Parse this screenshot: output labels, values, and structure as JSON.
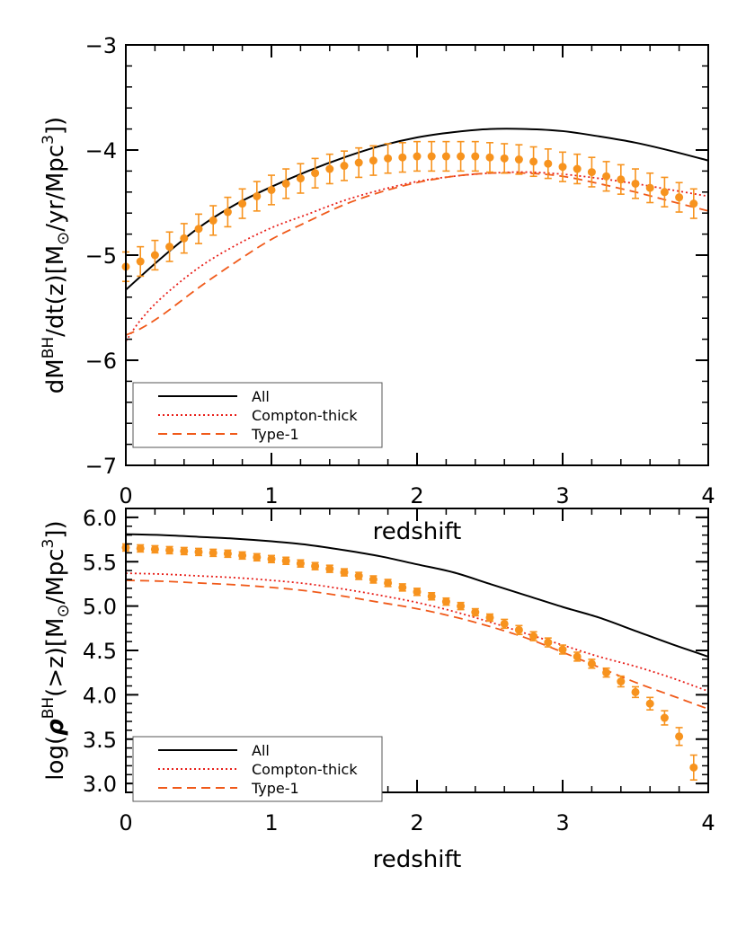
{
  "chart_data": [
    {
      "type": "line",
      "panel": "top",
      "xlabel": "redshift",
      "ylabel_parts": {
        "pre": "dM",
        "sup1": "BH",
        "mid": "/dt(z)[M",
        "sun": "⊙",
        "post": "/yr/Mpc",
        "sup2": "3",
        "end": "])"
      },
      "xlim": [
        0,
        4
      ],
      "ylim": [
        -7,
        -3
      ],
      "xticks": [
        0,
        1,
        2,
        3,
        4
      ],
      "xtick_labels": [
        "0",
        "1",
        "2",
        "3",
        "4"
      ],
      "yticks": [
        -7,
        -6,
        -5,
        -4,
        -3
      ],
      "ytick_labels": [
        "−7",
        "−6",
        "−5",
        "−4",
        "−3"
      ],
      "legend_position": "bottom-left",
      "series": [
        {
          "name": "All",
          "style": "solid",
          "color": "#000000",
          "x": [
            0,
            0.25,
            0.5,
            0.75,
            1.0,
            1.25,
            1.5,
            1.75,
            2.0,
            2.25,
            2.5,
            2.75,
            3.0,
            3.25,
            3.5,
            3.75,
            4.0
          ],
          "y": [
            -5.33,
            -5.02,
            -4.74,
            -4.52,
            -4.35,
            -4.2,
            -4.07,
            -3.96,
            -3.88,
            -3.83,
            -3.8,
            -3.8,
            -3.82,
            -3.87,
            -3.93,
            -4.01,
            -4.1
          ]
        },
        {
          "name": "Compton-thick",
          "style": "dotted",
          "color": "#e8201a",
          "x": [
            0,
            0.1,
            0.25,
            0.5,
            0.75,
            1.0,
            1.25,
            1.5,
            1.75,
            2.0,
            2.25,
            2.5,
            2.75,
            3.0,
            3.25,
            3.5,
            3.75,
            4.0
          ],
          "y": [
            -5.82,
            -5.62,
            -5.4,
            -5.12,
            -4.91,
            -4.74,
            -4.61,
            -4.48,
            -4.38,
            -4.3,
            -4.25,
            -4.22,
            -4.21,
            -4.23,
            -4.27,
            -4.32,
            -4.38,
            -4.44
          ]
        },
        {
          "name": "Type-1",
          "style": "dashed",
          "color": "#f05a1a",
          "x": [
            0,
            0.1,
            0.25,
            0.5,
            0.75,
            1.0,
            1.25,
            1.5,
            1.75,
            2.0,
            2.25,
            2.5,
            2.75,
            3.0,
            3.25,
            3.5,
            3.75,
            4.0
          ],
          "y": [
            -5.76,
            -5.7,
            -5.57,
            -5.31,
            -5.07,
            -4.85,
            -4.68,
            -4.52,
            -4.4,
            -4.31,
            -4.25,
            -4.22,
            -4.22,
            -4.25,
            -4.32,
            -4.4,
            -4.49,
            -4.58
          ]
        },
        {
          "name": "data",
          "style": "points",
          "color": "#f7931e",
          "x": [
            0.0,
            0.1,
            0.2,
            0.3,
            0.4,
            0.5,
            0.6,
            0.7,
            0.8,
            0.9,
            1.0,
            1.1,
            1.2,
            1.3,
            1.4,
            1.5,
            1.6,
            1.7,
            1.8,
            1.9,
            2.0,
            2.1,
            2.2,
            2.3,
            2.4,
            2.5,
            2.6,
            2.7,
            2.8,
            2.9,
            3.0,
            3.1,
            3.2,
            3.3,
            3.4,
            3.5,
            3.6,
            3.7,
            3.8,
            3.9
          ],
          "y": [
            -5.11,
            -5.06,
            -5.0,
            -4.92,
            -4.84,
            -4.75,
            -4.67,
            -4.59,
            -4.51,
            -4.44,
            -4.38,
            -4.32,
            -4.27,
            -4.22,
            -4.18,
            -4.15,
            -4.12,
            -4.1,
            -4.08,
            -4.07,
            -4.06,
            -4.06,
            -4.06,
            -4.06,
            -4.06,
            -4.07,
            -4.08,
            -4.09,
            -4.11,
            -4.13,
            -4.16,
            -4.18,
            -4.21,
            -4.25,
            -4.28,
            -4.32,
            -4.36,
            -4.4,
            -4.45,
            -4.51
          ],
          "err": 0.14
        }
      ]
    },
    {
      "type": "line",
      "panel": "bottom",
      "xlabel": "redshift",
      "xlabel_top": "redshift",
      "ylabel_parts": {
        "pre": "log(",
        "rho": "ρ",
        "sup1": "BH",
        "mid": "(>z)[M",
        "sun": "⊙",
        "post": "/Mpc",
        "sup2": "3",
        "end": "])"
      },
      "xlim": [
        0,
        4
      ],
      "ylim": [
        2.9,
        6.1
      ],
      "xticks": [
        0,
        1,
        2,
        3,
        4
      ],
      "xtick_labels": [
        "0",
        "1",
        "2",
        "3",
        "4"
      ],
      "yticks": [
        3.0,
        3.5,
        4.0,
        4.5,
        5.0,
        5.5,
        6.0
      ],
      "ytick_labels": [
        "3.0",
        "3.5",
        "4.0",
        "4.5",
        "5.0",
        "5.5",
        "6.0"
      ],
      "legend_position": "bottom-left",
      "series": [
        {
          "name": "All",
          "style": "solid",
          "color": "#000000",
          "x": [
            0,
            0.25,
            0.5,
            0.75,
            1.0,
            1.25,
            1.5,
            1.75,
            2.0,
            2.25,
            2.5,
            2.75,
            3.0,
            3.25,
            3.5,
            3.75,
            4.0
          ],
          "y": [
            5.81,
            5.8,
            5.78,
            5.76,
            5.73,
            5.69,
            5.63,
            5.56,
            5.47,
            5.38,
            5.25,
            5.12,
            4.99,
            4.87,
            4.72,
            4.57,
            4.43
          ]
        },
        {
          "name": "Compton-thick",
          "style": "dotted",
          "color": "#e8201a",
          "x": [
            0,
            0.25,
            0.5,
            0.75,
            1.0,
            1.25,
            1.5,
            1.75,
            2.0,
            2.25,
            2.5,
            2.75,
            3.0,
            3.25,
            3.5,
            3.75,
            4.0
          ],
          "y": [
            5.37,
            5.36,
            5.34,
            5.32,
            5.29,
            5.25,
            5.19,
            5.12,
            5.04,
            4.94,
            4.82,
            4.69,
            4.56,
            4.43,
            4.32,
            4.19,
            4.04
          ]
        },
        {
          "name": "Type-1",
          "style": "dashed",
          "color": "#f05a1a",
          "x": [
            0,
            0.25,
            0.5,
            0.75,
            1.0,
            1.25,
            1.5,
            1.75,
            2.0,
            2.25,
            2.5,
            2.75,
            3.0,
            3.25,
            3.5,
            3.75,
            4.0
          ],
          "y": [
            5.29,
            5.28,
            5.26,
            5.24,
            5.21,
            5.17,
            5.11,
            5.04,
            4.97,
            4.88,
            4.77,
            4.64,
            4.48,
            4.31,
            4.14,
            3.99,
            3.84
          ]
        },
        {
          "name": "data",
          "style": "points",
          "color": "#f7931e",
          "x": [
            0.0,
            0.1,
            0.2,
            0.3,
            0.4,
            0.5,
            0.6,
            0.7,
            0.8,
            0.9,
            1.0,
            1.1,
            1.2,
            1.3,
            1.4,
            1.5,
            1.6,
            1.7,
            1.8,
            1.9,
            2.0,
            2.1,
            2.2,
            2.3,
            2.4,
            2.5,
            2.6,
            2.7,
            2.8,
            2.9,
            3.0,
            3.1,
            3.2,
            3.3,
            3.4,
            3.5,
            3.6,
            3.7,
            3.8,
            3.9
          ],
          "y": [
            5.66,
            5.65,
            5.64,
            5.63,
            5.62,
            5.61,
            5.6,
            5.59,
            5.57,
            5.55,
            5.53,
            5.51,
            5.48,
            5.45,
            5.42,
            5.38,
            5.34,
            5.3,
            5.26,
            5.21,
            5.16,
            5.11,
            5.05,
            5.0,
            4.93,
            4.87,
            4.8,
            4.73,
            4.66,
            4.59,
            4.51,
            4.43,
            4.35,
            4.25,
            4.15,
            4.03,
            3.9,
            3.74,
            3.53,
            3.18
          ],
          "err": [
            0.04,
            0.04,
            0.04,
            0.04,
            0.04,
            0.04,
            0.04,
            0.04,
            0.04,
            0.04,
            0.04,
            0.04,
            0.04,
            0.04,
            0.04,
            0.04,
            0.04,
            0.04,
            0.04,
            0.04,
            0.04,
            0.04,
            0.04,
            0.04,
            0.04,
            0.04,
            0.05,
            0.05,
            0.05,
            0.05,
            0.05,
            0.05,
            0.05,
            0.05,
            0.06,
            0.06,
            0.07,
            0.08,
            0.1,
            0.14
          ]
        }
      ]
    }
  ]
}
